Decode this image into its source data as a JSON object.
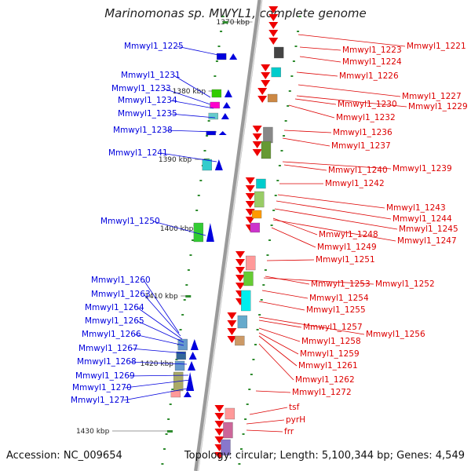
{
  "title": "Marinomonas sp. MWYL1, complete genome",
  "accession": "Accession: NC_009654",
  "topology": "Topology: circular; Length: 5,100,344 bp; Genes: 4,549",
  "colors": {
    "left_label": "#0000dd",
    "right_label": "#dd0000",
    "backbone": "#888888",
    "tick": "#2e8b2e"
  },
  "kbp_marks": [
    {
      "label": "1370 kbp"
    },
    {
      "label": "1380 kbp"
    },
    {
      "label": "1390 kbp"
    },
    {
      "label": "1400 kbp"
    },
    {
      "label": "1410 kbp"
    },
    {
      "label": "1420 kbp"
    },
    {
      "label": "1430 kbp"
    }
  ],
  "left_genes": [
    "Mmwyl1_1225",
    "Mmwyl1_1231",
    "Mmwyl1_1233",
    "Mmwyl1_1234",
    "Mmwyl1_1235",
    "Mmwyl1_1238",
    "Mmwyl1_1241",
    "Mmwyl1_1250",
    "Mmwyl1_1260",
    "Mmwyl1_1263",
    "Mmwyl1_1264",
    "Mmwyl1_1265",
    "Mmwyl1_1266",
    "Mmwyl1_1267",
    "Mmwyl1_1268",
    "Mmwyl1_1269",
    "Mmwyl1_1270",
    "Mmwyl1_1271"
  ],
  "right_genes": [
    "Mmwyl1_1221",
    "Mmwyl1_1223",
    "Mmwyl1_1224",
    "Mmwyl1_1226",
    "Mmwyl1_1227",
    "Mmwyl1_1230",
    "Mmwyl1_1229",
    "Mmwyl1_1232",
    "Mmwyl1_1236",
    "Mmwyl1_1237",
    "Mmwyl1_1240",
    "Mmwyl1_1239",
    "Mmwyl1_1242",
    "Mmwyl1_1243",
    "Mmwyl1_1244",
    "Mmwyl1_1245",
    "Mmwyl1_1248",
    "Mmwyl1_1247",
    "Mmwyl1_1249",
    "Mmwyl1_1251",
    "Mmwyl1_1253",
    "Mmwyl1_1252",
    "Mmwyl1_1254",
    "Mmwyl1_1255",
    "Mmwyl1_1257",
    "Mmwyl1_1256",
    "Mmwyl1_1258",
    "Mmwyl1_1259",
    "Mmwyl1_1261",
    "Mmwyl1_1262",
    "Mmwyl1_1272",
    "tsf",
    "pyrH",
    "frr"
  ]
}
